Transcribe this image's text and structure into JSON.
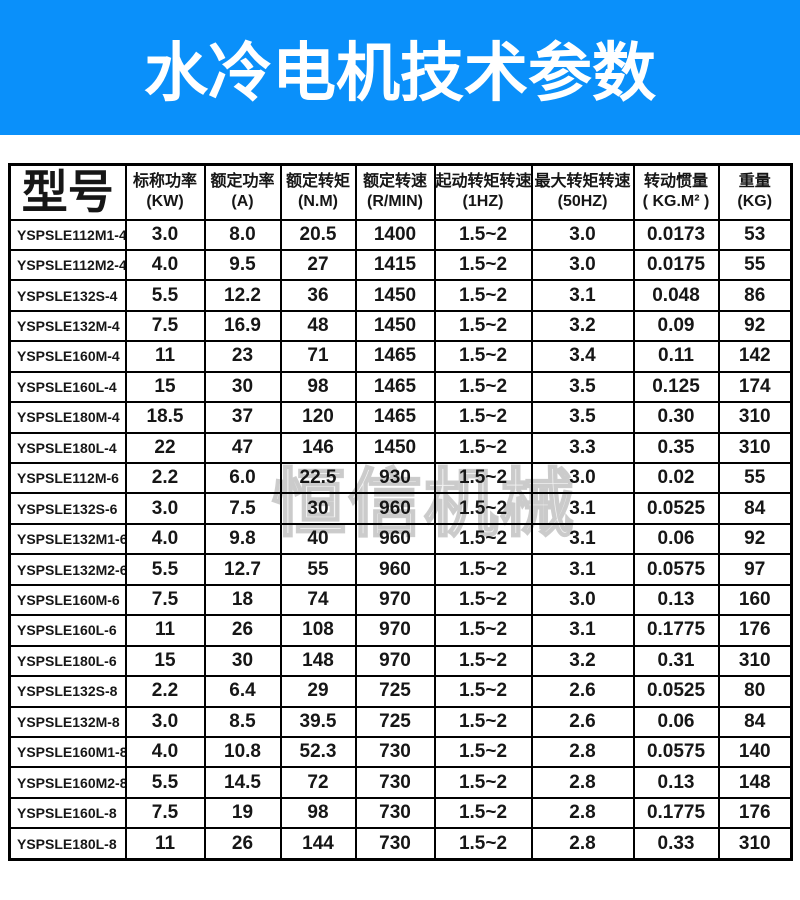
{
  "banner": {
    "title": "水冷电机技术参数",
    "bg_color": "#0a90fa",
    "text_color": "#ffffff"
  },
  "watermark": {
    "text": "恒信机械",
    "color": "#c8c8c8"
  },
  "table": {
    "model_header": "型号",
    "columns": [
      {
        "label": "标称功率",
        "unit": "(KW)"
      },
      {
        "label": "额定功率",
        "unit": "(A)"
      },
      {
        "label": "额定转矩",
        "unit": "(N.M)"
      },
      {
        "label": "额定转速",
        "unit": "(R/MIN)"
      },
      {
        "label": "起动转矩转速",
        "unit": "(1HZ)"
      },
      {
        "label": "最大转矩转速",
        "unit": "(50HZ)"
      },
      {
        "label": "转动惯量",
        "unit": "( KG.M² )"
      },
      {
        "label": "重量",
        "unit": "(KG)"
      }
    ],
    "rows": [
      {
        "model": "YSPSLE112M1-4",
        "values": [
          "3.0",
          "8.0",
          "20.5",
          "1400",
          "1.5~2",
          "3.0",
          "0.0173",
          "53"
        ]
      },
      {
        "model": "YSPSLE112M2-4",
        "values": [
          "4.0",
          "9.5",
          "27",
          "1415",
          "1.5~2",
          "3.0",
          "0.0175",
          "55"
        ]
      },
      {
        "model": "YSPSLE132S-4",
        "values": [
          "5.5",
          "12.2",
          "36",
          "1450",
          "1.5~2",
          "3.1",
          "0.048",
          "86"
        ]
      },
      {
        "model": "YSPSLE132M-4",
        "values": [
          "7.5",
          "16.9",
          "48",
          "1450",
          "1.5~2",
          "3.2",
          "0.09",
          "92"
        ]
      },
      {
        "model": "YSPSLE160M-4",
        "values": [
          "11",
          "23",
          "71",
          "1465",
          "1.5~2",
          "3.4",
          "0.11",
          "142"
        ]
      },
      {
        "model": "YSPSLE160L-4",
        "values": [
          "15",
          "30",
          "98",
          "1465",
          "1.5~2",
          "3.5",
          "0.125",
          "174"
        ]
      },
      {
        "model": "YSPSLE180M-4",
        "values": [
          "18.5",
          "37",
          "120",
          "1465",
          "1.5~2",
          "3.5",
          "0.30",
          "310"
        ]
      },
      {
        "model": "YSPSLE180L-4",
        "values": [
          "22",
          "47",
          "146",
          "1450",
          "1.5~2",
          "3.3",
          "0.35",
          "310"
        ]
      },
      {
        "model": "YSPSLE112M-6",
        "values": [
          "2.2",
          "6.0",
          "22.5",
          "930",
          "1.5~2",
          "3.0",
          "0.02",
          "55"
        ]
      },
      {
        "model": "YSPSLE132S-6",
        "values": [
          "3.0",
          "7.5",
          "30",
          "960",
          "1.5~2",
          "3.1",
          "0.0525",
          "84"
        ]
      },
      {
        "model": "YSPSLE132M1-6",
        "values": [
          "4.0",
          "9.8",
          "40",
          "960",
          "1.5~2",
          "3.1",
          "0.06",
          "92"
        ]
      },
      {
        "model": "YSPSLE132M2-6",
        "values": [
          "5.5",
          "12.7",
          "55",
          "960",
          "1.5~2",
          "3.1",
          "0.0575",
          "97"
        ]
      },
      {
        "model": "YSPSLE160M-6",
        "values": [
          "7.5",
          "18",
          "74",
          "970",
          "1.5~2",
          "3.0",
          "0.13",
          "160"
        ]
      },
      {
        "model": "YSPSLE160L-6",
        "values": [
          "11",
          "26",
          "108",
          "970",
          "1.5~2",
          "3.1",
          "0.1775",
          "176"
        ]
      },
      {
        "model": "YSPSLE180L-6",
        "values": [
          "15",
          "30",
          "148",
          "970",
          "1.5~2",
          "3.2",
          "0.31",
          "310"
        ]
      },
      {
        "model": "YSPSLE132S-8",
        "values": [
          "2.2",
          "6.4",
          "29",
          "725",
          "1.5~2",
          "2.6",
          "0.0525",
          "80"
        ]
      },
      {
        "model": "YSPSLE132M-8",
        "values": [
          "3.0",
          "8.5",
          "39.5",
          "725",
          "1.5~2",
          "2.6",
          "0.06",
          "84"
        ]
      },
      {
        "model": "YSPSLE160M1-8",
        "values": [
          "4.0",
          "10.8",
          "52.3",
          "730",
          "1.5~2",
          "2.8",
          "0.0575",
          "140"
        ]
      },
      {
        "model": "YSPSLE160M2-8",
        "values": [
          "5.5",
          "14.5",
          "72",
          "730",
          "1.5~2",
          "2.8",
          "0.13",
          "148"
        ]
      },
      {
        "model": "YSPSLE160L-8",
        "values": [
          "7.5",
          "19",
          "98",
          "730",
          "1.5~2",
          "2.8",
          "0.1775",
          "176"
        ]
      },
      {
        "model": "YSPSLE180L-8",
        "values": [
          "11",
          "26",
          "144",
          "730",
          "1.5~2",
          "2.8",
          "0.33",
          "310"
        ]
      }
    ]
  }
}
